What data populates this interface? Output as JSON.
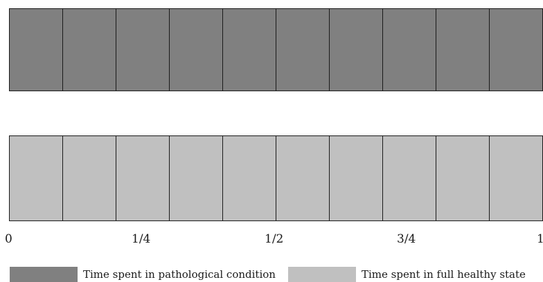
{
  "diagram": {
    "segments_per_bar": 10,
    "bars": [
      {
        "series": "Time spent in pathological condition",
        "color": "#808080"
      },
      {
        "series": "Time spent in full healthy state",
        "color": "#c0c0c0"
      }
    ],
    "axis": {
      "ticks": [
        {
          "label": "0",
          "value": 0
        },
        {
          "label": "1/4",
          "value": 0.25
        },
        {
          "label": "1/2",
          "value": 0.5
        },
        {
          "label": "3/4",
          "value": 0.75
        },
        {
          "label": "1",
          "value": 1
        }
      ]
    },
    "legend": [
      {
        "label": "Time spent in pathological condition",
        "color": "#808080"
      },
      {
        "label": "Time spent in full healthy state",
        "color": "#c0c0c0"
      }
    ]
  }
}
